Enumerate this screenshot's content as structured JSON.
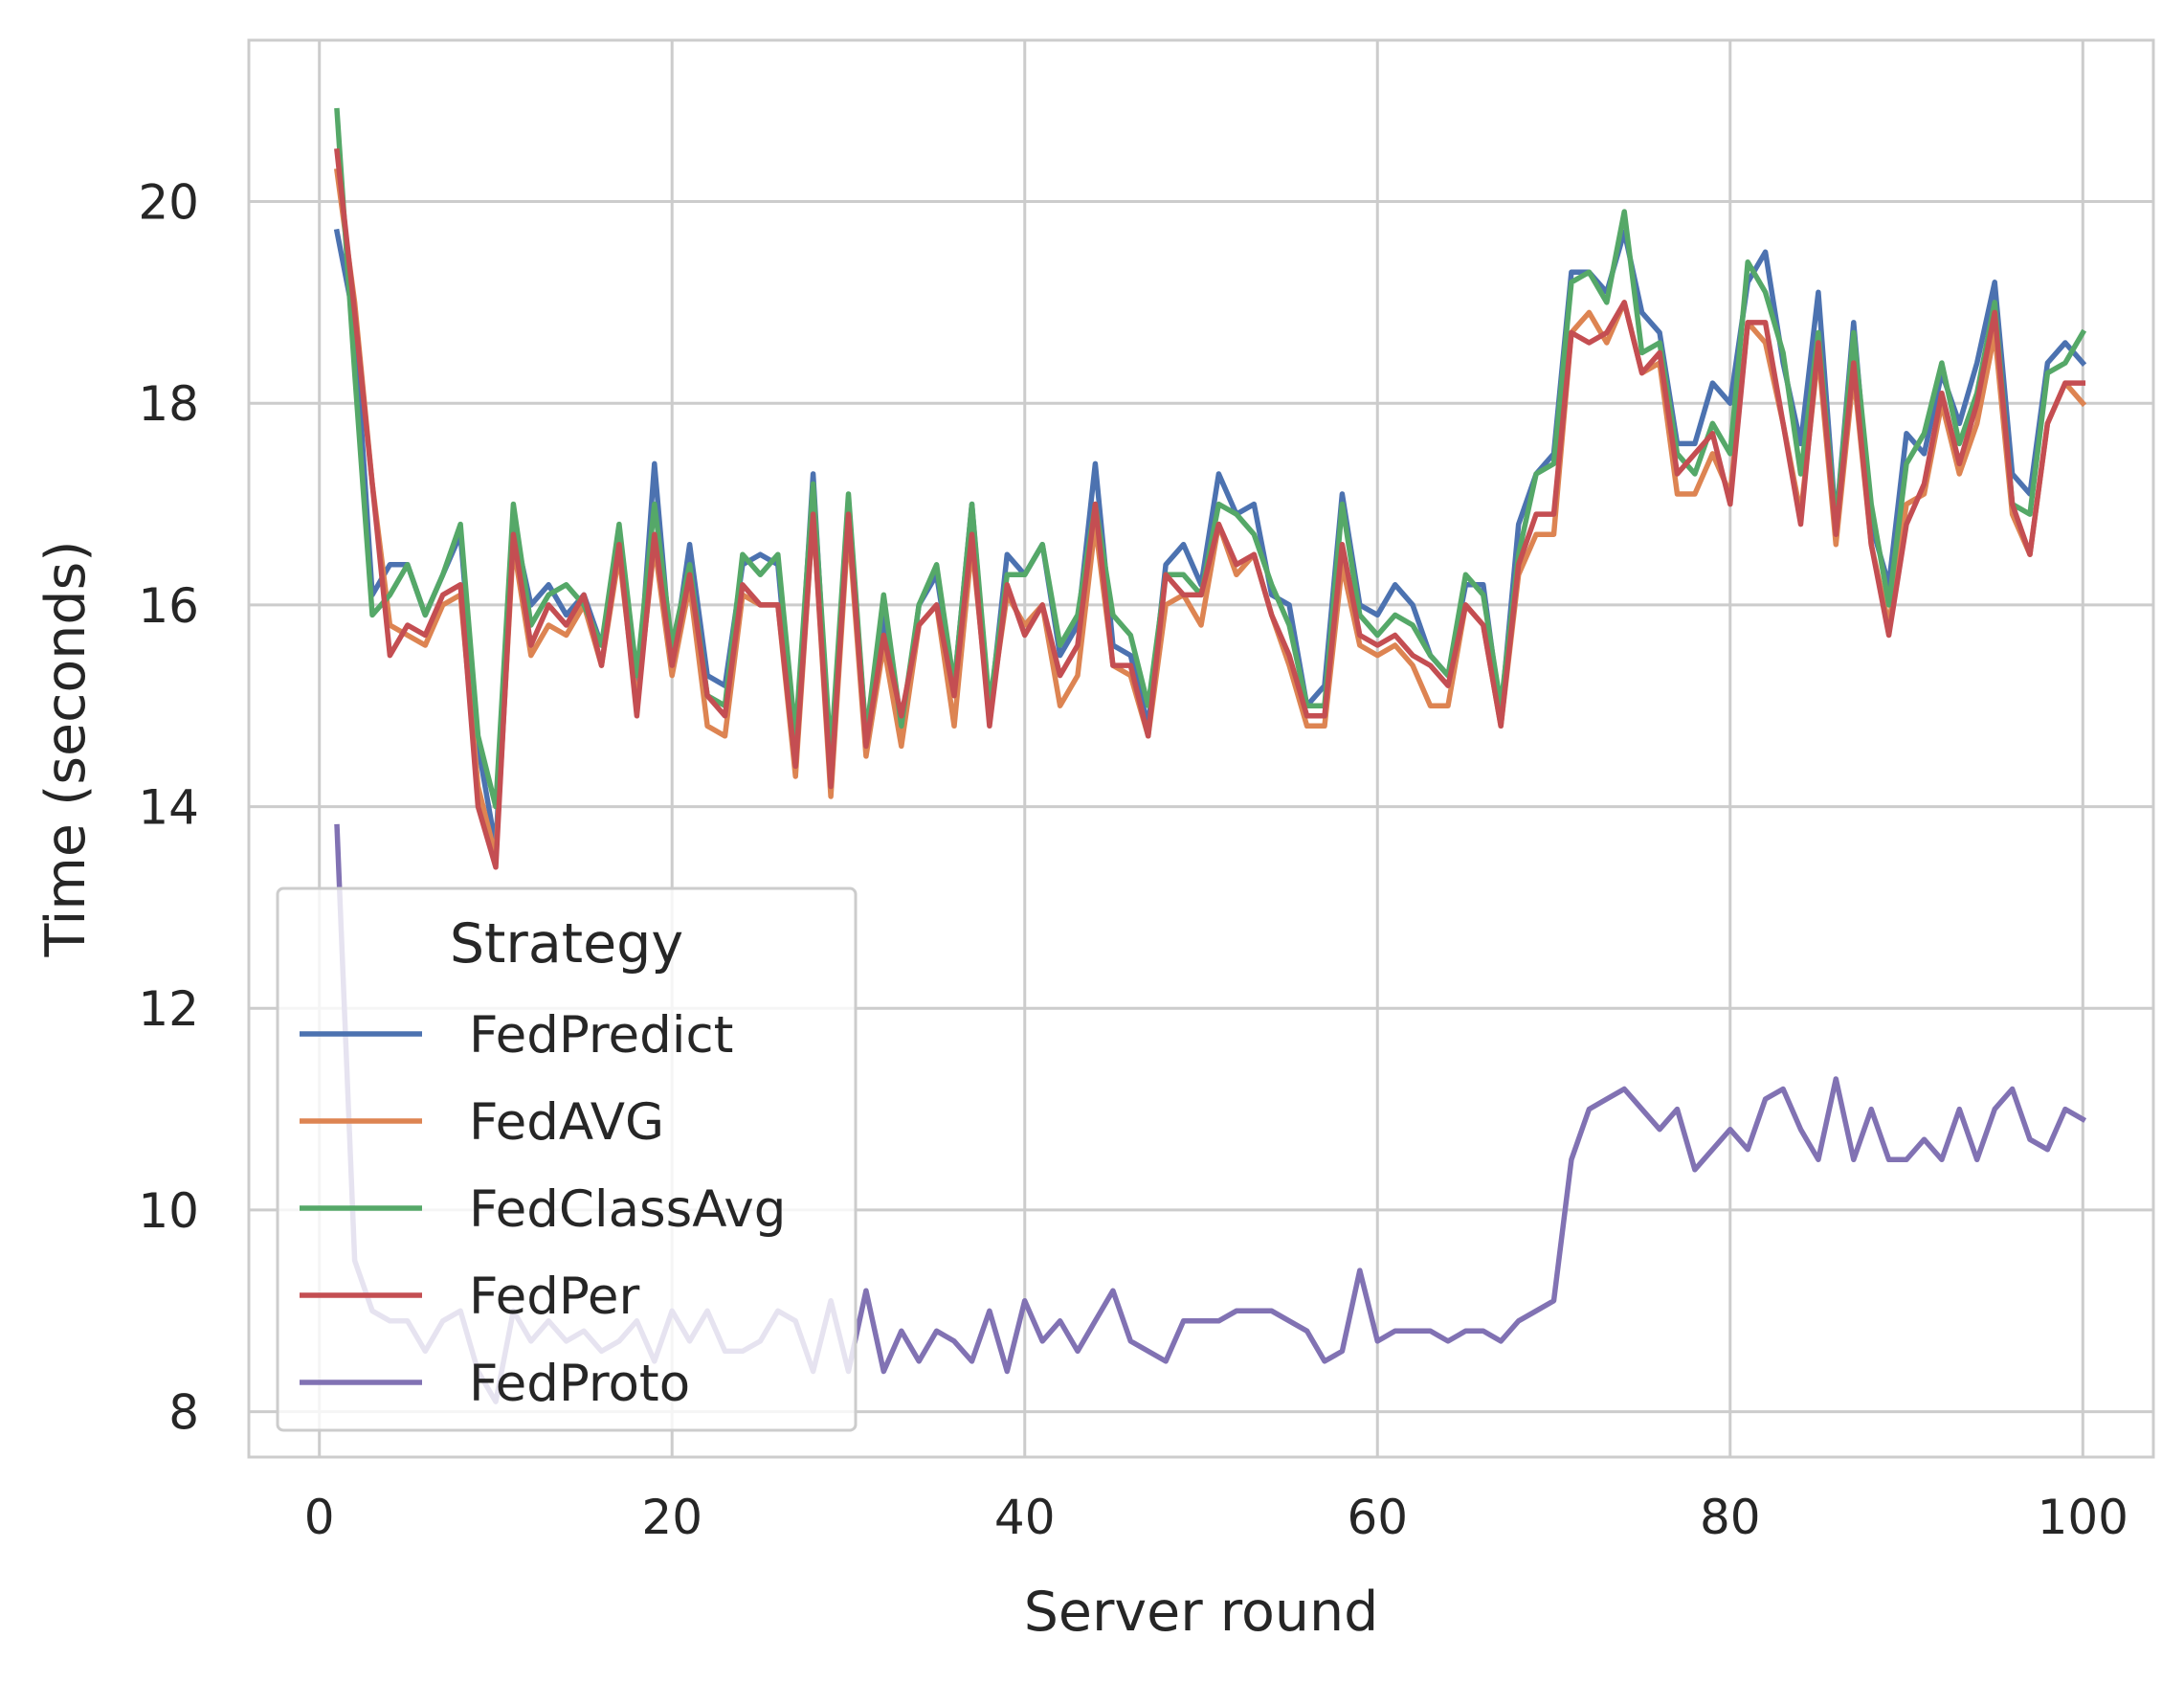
{
  "chart_data": {
    "type": "line",
    "title": "",
    "xlabel": "Server round",
    "ylabel": "Time (seconds)",
    "xlim": [
      -4,
      104
    ],
    "ylim": [
      7.55,
      21.6
    ],
    "xticks": [
      0,
      20,
      40,
      60,
      80,
      100
    ],
    "yticks": [
      8,
      10,
      12,
      14,
      16,
      18,
      20
    ],
    "grid": true,
    "legend": {
      "title": "Strategy",
      "placement": "lower-left"
    },
    "x": [
      1,
      2,
      3,
      4,
      5,
      6,
      7,
      8,
      9,
      10,
      11,
      12,
      13,
      14,
      15,
      16,
      17,
      18,
      19,
      20,
      21,
      22,
      23,
      24,
      25,
      26,
      27,
      28,
      29,
      30,
      31,
      32,
      33,
      34,
      35,
      36,
      37,
      38,
      39,
      40,
      41,
      42,
      43,
      44,
      45,
      46,
      47,
      48,
      49,
      50,
      51,
      52,
      53,
      54,
      55,
      56,
      57,
      58,
      59,
      60,
      61,
      62,
      63,
      64,
      65,
      66,
      67,
      68,
      69,
      70,
      71,
      72,
      73,
      74,
      75,
      76,
      77,
      78,
      79,
      80,
      81,
      82,
      83,
      84,
      85,
      86,
      87,
      88,
      89,
      90,
      91,
      92,
      93,
      94,
      95,
      96,
      97,
      98,
      99,
      100
    ],
    "series": [
      {
        "name": "FedPredict",
        "color": "#4c72b0",
        "values": [
          19.7,
          18.8,
          16.1,
          16.4,
          16.4,
          15.9,
          16.3,
          16.7,
          14.6,
          13.6,
          16.8,
          16.0,
          16.2,
          15.9,
          16.1,
          15.6,
          16.7,
          15.0,
          17.4,
          15.4,
          16.6,
          15.3,
          15.2,
          16.4,
          16.5,
          16.4,
          14.5,
          17.3,
          14.3,
          17.0,
          14.7,
          15.9,
          14.7,
          16.0,
          16.3,
          15.2,
          17.0,
          14.9,
          16.5,
          16.3,
          16.6,
          15.5,
          15.8,
          17.4,
          15.6,
          15.5,
          14.8,
          16.4,
          16.6,
          16.2,
          17.3,
          16.9,
          17.0,
          16.1,
          16.0,
          15.0,
          15.2,
          17.1,
          16.0,
          15.9,
          16.2,
          16.0,
          15.5,
          15.3,
          16.2,
          16.2,
          14.9,
          16.8,
          17.3,
          17.5,
          19.3,
          19.3,
          19.1,
          19.7,
          18.9,
          18.7,
          17.6,
          17.6,
          18.2,
          18.0,
          19.2,
          19.5,
          18.4,
          17.6,
          19.1,
          16.8,
          18.8,
          16.8,
          16.2,
          17.7,
          17.5,
          18.3,
          17.8,
          18.4,
          19.2,
          17.3,
          17.1,
          18.4,
          18.6,
          18.4
        ]
      },
      {
        "name": "FedAVG",
        "color": "#dd8452",
        "values": [
          20.3,
          19.0,
          17.2,
          15.8,
          15.7,
          15.6,
          16.0,
          16.1,
          14.2,
          13.5,
          16.6,
          15.5,
          15.8,
          15.7,
          16.0,
          15.4,
          16.5,
          15.0,
          16.6,
          15.3,
          16.2,
          14.8,
          14.7,
          16.1,
          16.0,
          16.0,
          14.3,
          16.9,
          14.1,
          16.8,
          14.5,
          15.6,
          14.6,
          15.8,
          16.0,
          14.8,
          16.6,
          14.9,
          16.1,
          15.8,
          16.0,
          15.0,
          15.3,
          16.8,
          15.4,
          15.3,
          14.7,
          16.0,
          16.1,
          15.8,
          16.8,
          16.3,
          16.5,
          15.9,
          15.4,
          14.8,
          14.8,
          16.4,
          15.6,
          15.5,
          15.6,
          15.4,
          15.0,
          15.0,
          16.0,
          15.8,
          14.8,
          16.3,
          16.7,
          16.7,
          18.7,
          18.9,
          18.6,
          19.0,
          18.3,
          18.4,
          17.1,
          17.1,
          17.5,
          17.1,
          18.8,
          18.6,
          17.8,
          16.9,
          18.5,
          16.6,
          18.3,
          16.6,
          15.8,
          17.0,
          17.1,
          18.0,
          17.3,
          17.8,
          18.7,
          16.9,
          16.5,
          17.8,
          18.2,
          18.0
        ]
      },
      {
        "name": "FedClassAvg",
        "color": "#55a868",
        "values": [
          20.9,
          18.3,
          15.9,
          16.1,
          16.4,
          15.9,
          16.3,
          16.8,
          14.7,
          14.0,
          17.0,
          15.8,
          16.1,
          16.2,
          16.0,
          15.6,
          16.8,
          15.3,
          17.0,
          15.6,
          16.4,
          15.1,
          15.0,
          16.5,
          16.3,
          16.5,
          14.7,
          17.2,
          14.5,
          17.1,
          14.7,
          16.1,
          14.8,
          16.0,
          16.4,
          15.2,
          17.0,
          15.0,
          16.3,
          16.3,
          16.6,
          15.6,
          15.9,
          17.0,
          15.9,
          15.7,
          15.0,
          16.3,
          16.3,
          16.1,
          17.0,
          16.9,
          16.7,
          16.2,
          15.8,
          15.0,
          15.0,
          17.0,
          15.9,
          15.7,
          15.9,
          15.8,
          15.5,
          15.3,
          16.3,
          16.1,
          15.0,
          16.5,
          17.3,
          17.4,
          19.2,
          19.3,
          19.0,
          19.9,
          18.5,
          18.6,
          17.5,
          17.3,
          17.8,
          17.5,
          19.4,
          19.1,
          18.5,
          17.3,
          18.7,
          16.8,
          18.7,
          17.0,
          16.0,
          17.4,
          17.7,
          18.4,
          17.6,
          18.1,
          19.0,
          17.0,
          16.9,
          18.3,
          18.4,
          18.7
        ]
      },
      {
        "name": "FedPer",
        "color": "#c44e52",
        "values": [
          20.5,
          18.9,
          17.2,
          15.5,
          15.8,
          15.7,
          16.1,
          16.2,
          14.0,
          13.4,
          16.7,
          15.6,
          16.0,
          15.8,
          16.1,
          15.4,
          16.6,
          14.9,
          16.7,
          15.4,
          16.3,
          15.1,
          14.9,
          16.2,
          16.0,
          16.0,
          14.4,
          16.9,
          14.2,
          16.9,
          14.6,
          15.7,
          14.9,
          15.8,
          16.0,
          15.1,
          16.7,
          14.8,
          16.2,
          15.7,
          16.0,
          15.3,
          15.6,
          17.0,
          15.4,
          15.4,
          14.7,
          16.3,
          16.1,
          16.1,
          16.8,
          16.4,
          16.5,
          15.9,
          15.5,
          14.9,
          14.9,
          16.6,
          15.7,
          15.6,
          15.7,
          15.5,
          15.4,
          15.2,
          16.0,
          15.8,
          14.8,
          16.4,
          16.9,
          16.9,
          18.7,
          18.6,
          18.7,
          19.0,
          18.3,
          18.5,
          17.3,
          17.5,
          17.7,
          17.0,
          18.8,
          18.8,
          17.8,
          16.8,
          18.6,
          16.7,
          18.4,
          16.6,
          15.7,
          16.8,
          17.2,
          18.1,
          17.4,
          18.0,
          18.9,
          17.0,
          16.5,
          17.8,
          18.2,
          18.2
        ]
      },
      {
        "name": "FedProto",
        "color": "#8172b3",
        "values": [
          13.8,
          9.5,
          9.0,
          8.9,
          8.9,
          8.6,
          8.9,
          9.0,
          8.4,
          8.1,
          9.0,
          8.7,
          8.9,
          8.7,
          8.8,
          8.6,
          8.7,
          8.9,
          8.5,
          9.0,
          8.7,
          9.0,
          8.6,
          8.6,
          8.7,
          9.0,
          8.9,
          8.4,
          9.1,
          8.4,
          9.2,
          8.4,
          8.8,
          8.5,
          8.8,
          8.7,
          8.5,
          9.0,
          8.4,
          9.1,
          8.7,
          8.9,
          8.6,
          8.9,
          9.2,
          8.7,
          8.6,
          8.5,
          8.9,
          8.9,
          8.9,
          9.0,
          9.0,
          9.0,
          8.9,
          8.8,
          8.5,
          8.6,
          9.4,
          8.7,
          8.8,
          8.8,
          8.8,
          8.7,
          8.8,
          8.8,
          8.7,
          8.9,
          9.0,
          9.1,
          10.5,
          11.0,
          11.1,
          11.2,
          11.0,
          10.8,
          11.0,
          10.4,
          10.6,
          10.8,
          10.6,
          11.1,
          11.2,
          10.8,
          10.5,
          11.3,
          10.5,
          11.0,
          10.5,
          10.5,
          10.7,
          10.5,
          11.0,
          10.5,
          11.0,
          11.2,
          10.7,
          10.6,
          11.0,
          10.9
        ]
      }
    ]
  }
}
